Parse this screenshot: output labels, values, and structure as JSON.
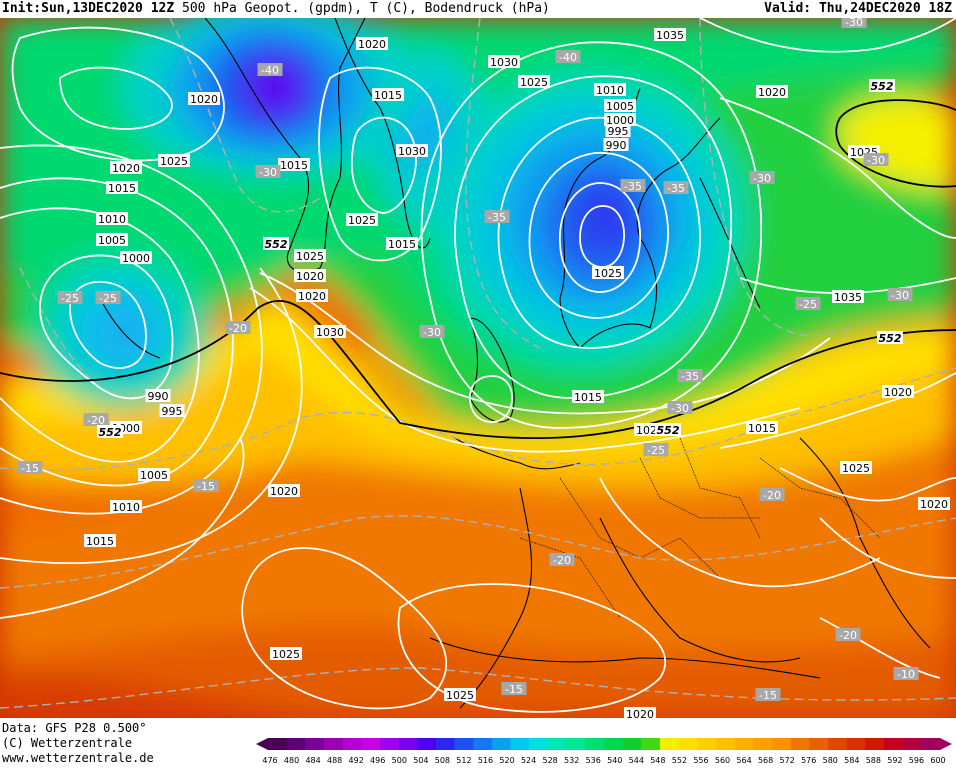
{
  "header": {
    "init_label": "Init:",
    "init_value": "Sun,13DEC2020 12Z",
    "title": "500 hPa Geopot. (gpdm), T (C), Bodendruck (hPa)",
    "valid_label": "Valid:",
    "valid_value": "Thu,24DEC2020 18Z"
  },
  "credits": {
    "data": "Data: GFS P28 0.500°",
    "copyright": "(C) Wetterzentrale",
    "url": "www.wetterzentrale.de"
  },
  "colors": {
    "geopot_scale": [
      "#4b0055",
      "#5e0078",
      "#7a0096",
      "#9a00b4",
      "#b400d2",
      "#c800e6",
      "#a000f0",
      "#7800f0",
      "#5000f0",
      "#2a28f0",
      "#1e50f0",
      "#1478f0",
      "#0aa0f0",
      "#00c8f0",
      "#00e0e0",
      "#00e8b4",
      "#00e890",
      "#00e070",
      "#00d850",
      "#10d030",
      "#40d810",
      "#f0f000",
      "#ffe000",
      "#ffd000",
      "#ffc000",
      "#ffb000",
      "#ffa000",
      "#ff9000",
      "#f07800",
      "#e86000",
      "#e04800",
      "#d83000",
      "#d01800",
      "#c80020",
      "#b40040",
      "#a00060"
    ],
    "pressure_isobar": "#ffffff",
    "temperature_isotherm": "#b0b0b0"
  },
  "colorbar": {
    "ticks": [
      "476",
      "480",
      "484",
      "488",
      "492",
      "496",
      "500",
      "504",
      "508",
      "512",
      "516",
      "520",
      "524",
      "528",
      "532",
      "536",
      "540",
      "544",
      "548",
      "552",
      "556",
      "560",
      "564",
      "568",
      "572",
      "576",
      "580",
      "584",
      "588",
      "592",
      "596",
      "600"
    ]
  },
  "pressure_labels": [
    "1020",
    "1020",
    "1025",
    "1015",
    "1020",
    "1015",
    "1010",
    "1005",
    "1000",
    "1000",
    "990",
    "995",
    "1005",
    "1010",
    "1015",
    "1020",
    "1030",
    "1035",
    "1025",
    "1020",
    "1020",
    "1025",
    "1015",
    "1030",
    "1025",
    "1015",
    "1010",
    "1005",
    "1000",
    "995",
    "990",
    "1025",
    "1020",
    "1030",
    "1035",
    "1025",
    "1020",
    "1015",
    "1015",
    "1025",
    "1025",
    "1025",
    "1020",
    "1025",
    "1020"
  ],
  "temperature_labels": [
    "-40",
    "-30",
    "-25",
    "-25",
    "-20",
    "-20",
    "-15",
    "-15",
    "-35",
    "-35",
    "-30",
    "-30",
    "-40",
    "-35",
    "-30",
    "-25",
    "-30",
    "-35",
    "-30",
    "-25",
    "-20",
    "-20",
    "-20",
    "-15",
    "-15",
    "-30",
    "-10"
  ],
  "geopot_labels": [
    "552",
    "552",
    "552",
    "552",
    "552"
  ]
}
